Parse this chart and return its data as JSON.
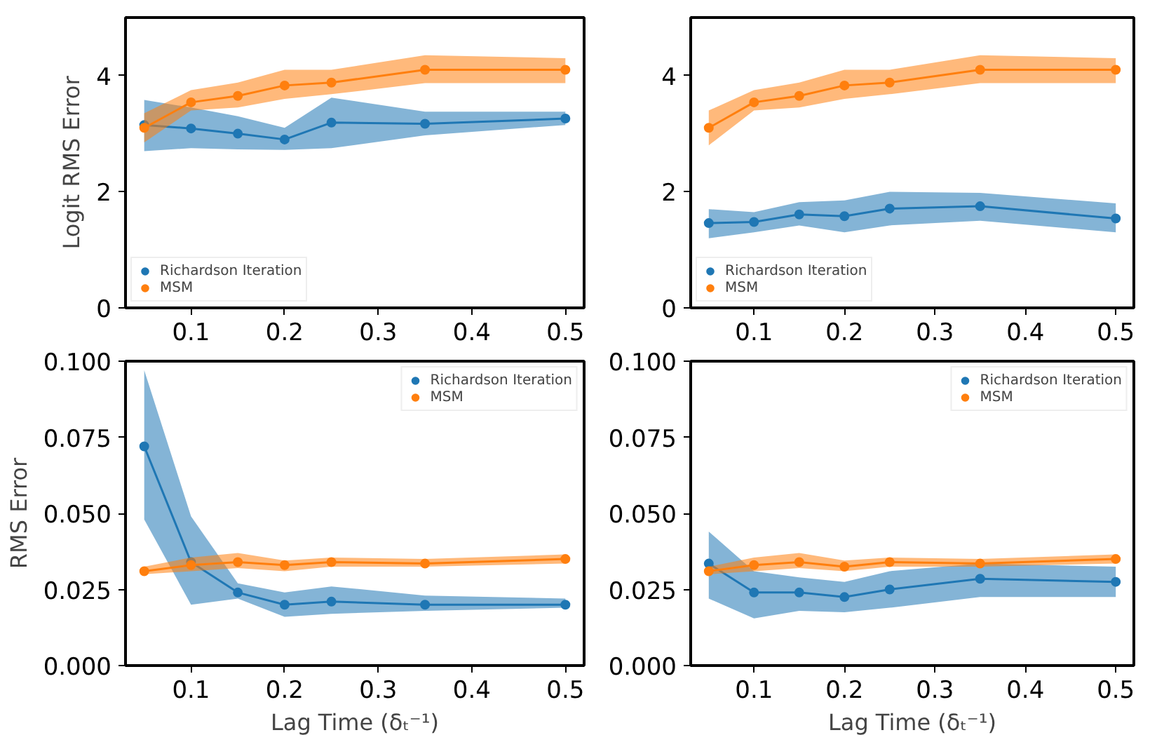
{
  "chart_data": [
    {
      "type": "line",
      "ylabel": "Logit RMS Error",
      "x": [
        0.05,
        0.1,
        0.15,
        0.2,
        0.25,
        0.35,
        0.5
      ],
      "xlim": [
        0.03,
        0.52
      ],
      "xticks": [
        0.1,
        0.2,
        0.3,
        0.4,
        0.5
      ],
      "ylim": [
        0,
        5
      ],
      "yticks": [
        0,
        2,
        4
      ],
      "legend": "bottom left",
      "marker": "circle",
      "line_style": "solid",
      "grid": false,
      "series": [
        {
          "name": "Richardson Iteration",
          "color": "#1f77b4",
          "values": [
            3.15,
            3.09,
            3.0,
            2.9,
            3.19,
            3.17,
            3.26
          ],
          "lower": [
            2.7,
            2.75,
            2.73,
            2.72,
            2.75,
            2.97,
            3.15
          ],
          "upper": [
            3.58,
            3.45,
            3.3,
            3.1,
            3.62,
            3.38,
            3.38
          ]
        },
        {
          "name": "MSM",
          "color": "#ff7f0e",
          "values": [
            3.1,
            3.54,
            3.65,
            3.83,
            3.88,
            4.1,
            4.1
          ],
          "lower": [
            2.85,
            3.4,
            3.45,
            3.6,
            3.68,
            3.87,
            3.87
          ],
          "upper": [
            3.35,
            3.75,
            3.88,
            4.1,
            4.1,
            4.35,
            4.3
          ]
        }
      ]
    },
    {
      "type": "line",
      "x": [
        0.05,
        0.1,
        0.15,
        0.2,
        0.25,
        0.35,
        0.5
      ],
      "xlim": [
        0.03,
        0.52
      ],
      "xticks": [
        0.1,
        0.2,
        0.3,
        0.4,
        0.5
      ],
      "ylim": [
        0,
        5
      ],
      "yticks": [
        0,
        2,
        4
      ],
      "legend": "bottom left",
      "marker": "circle",
      "line_style": "solid",
      "grid": false,
      "series": [
        {
          "name": "Richardson Iteration",
          "color": "#1f77b4",
          "values": [
            1.46,
            1.48,
            1.61,
            1.58,
            1.71,
            1.75,
            1.54
          ],
          "lower": [
            1.2,
            1.3,
            1.42,
            1.3,
            1.42,
            1.5,
            1.3
          ],
          "upper": [
            1.7,
            1.65,
            1.82,
            1.85,
            2.0,
            1.98,
            1.8
          ]
        },
        {
          "name": "MSM",
          "color": "#ff7f0e",
          "values": [
            3.1,
            3.54,
            3.65,
            3.83,
            3.88,
            4.1,
            4.1
          ],
          "lower": [
            2.8,
            3.4,
            3.45,
            3.6,
            3.68,
            3.87,
            3.87
          ],
          "upper": [
            3.4,
            3.75,
            3.88,
            4.1,
            4.1,
            4.35,
            4.3
          ]
        }
      ]
    },
    {
      "type": "line",
      "xlabel": "Lag Time (δₜ⁻¹)",
      "ylabel": "RMS Error",
      "x": [
        0.05,
        0.1,
        0.15,
        0.2,
        0.25,
        0.35,
        0.5
      ],
      "xlim": [
        0.03,
        0.52
      ],
      "xticks": [
        0.1,
        0.2,
        0.3,
        0.4,
        0.5
      ],
      "ylim": [
        0,
        0.1
      ],
      "yticks": [
        {
          "value": 0,
          "label": "0.000"
        },
        {
          "value": 0.025,
          "label": "0.025"
        },
        {
          "value": 0.05,
          "label": "0.050"
        },
        {
          "value": 0.075,
          "label": "0.075"
        },
        {
          "value": 0.1,
          "label": "0.100"
        }
      ],
      "legend": "top right",
      "marker": "circle",
      "line_style": "solid",
      "grid": false,
      "series": [
        {
          "name": "Richardson Iteration",
          "color": "#1f77b4",
          "values": [
            0.072,
            0.034,
            0.024,
            0.02,
            0.021,
            0.02,
            0.02
          ],
          "lower": [
            0.048,
            0.02,
            0.022,
            0.016,
            0.017,
            0.018,
            0.019
          ],
          "upper": [
            0.097,
            0.049,
            0.027,
            0.024,
            0.026,
            0.023,
            0.022
          ]
        },
        {
          "name": "MSM",
          "color": "#ff7f0e",
          "values": [
            0.031,
            0.033,
            0.034,
            0.033,
            0.034,
            0.0335,
            0.035
          ],
          "lower": [
            0.03,
            0.031,
            0.032,
            0.031,
            0.0325,
            0.0325,
            0.0335
          ],
          "upper": [
            0.0325,
            0.0355,
            0.037,
            0.0345,
            0.0355,
            0.035,
            0.0365
          ]
        }
      ]
    },
    {
      "type": "line",
      "xlabel": "Lag Time (δₜ⁻¹)",
      "x": [
        0.05,
        0.1,
        0.15,
        0.2,
        0.25,
        0.35,
        0.5
      ],
      "xlim": [
        0.03,
        0.52
      ],
      "xticks": [
        0.1,
        0.2,
        0.3,
        0.4,
        0.5
      ],
      "ylim": [
        0,
        0.1
      ],
      "yticks": [
        {
          "value": 0,
          "label": "0.000"
        },
        {
          "value": 0.025,
          "label": "0.025"
        },
        {
          "value": 0.05,
          "label": "0.050"
        },
        {
          "value": 0.075,
          "label": "0.075"
        },
        {
          "value": 0.1,
          "label": "0.100"
        }
      ],
      "legend": "top right",
      "marker": "circle",
      "line_style": "solid",
      "grid": false,
      "series": [
        {
          "name": "Richardson Iteration",
          "color": "#1f77b4",
          "values": [
            0.0335,
            0.024,
            0.024,
            0.0225,
            0.025,
            0.0285,
            0.0275
          ],
          "lower": [
            0.022,
            0.0155,
            0.018,
            0.0175,
            0.019,
            0.0225,
            0.0225
          ],
          "upper": [
            0.044,
            0.031,
            0.029,
            0.0275,
            0.031,
            0.0335,
            0.0325
          ]
        },
        {
          "name": "MSM",
          "color": "#ff7f0e",
          "values": [
            0.031,
            0.033,
            0.034,
            0.0325,
            0.034,
            0.0335,
            0.035
          ],
          "lower": [
            0.03,
            0.031,
            0.032,
            0.031,
            0.0325,
            0.0325,
            0.0335
          ],
          "upper": [
            0.0325,
            0.0355,
            0.037,
            0.0345,
            0.0355,
            0.035,
            0.0365
          ]
        }
      ]
    }
  ]
}
